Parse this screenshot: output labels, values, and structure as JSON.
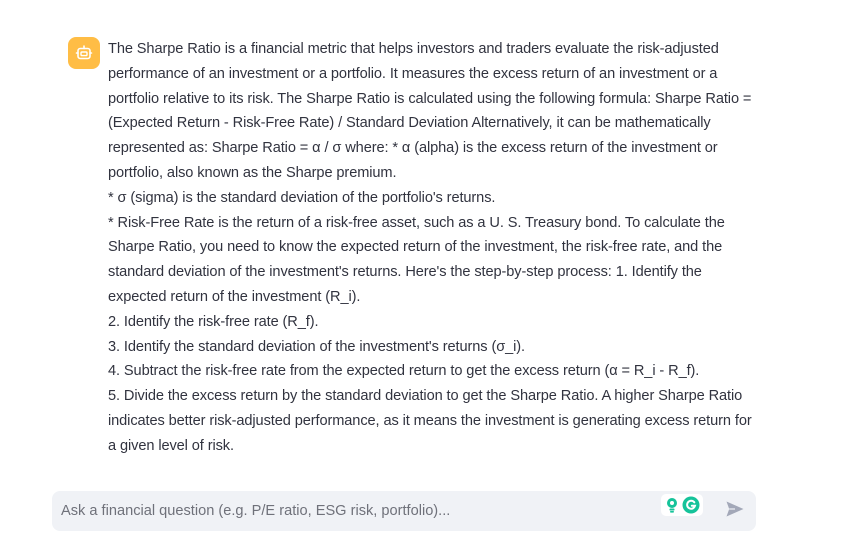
{
  "chat": {
    "assistant_message": {
      "paragraphs": [
        "The Sharpe Ratio is a financial metric that helps investors and traders evaluate the risk-adjusted performance of an investment or a portfolio. It measures the excess return of an investment or a portfolio relative to its risk. The Sharpe Ratio is calculated using the following formula: Sharpe Ratio = (Expected Return - Risk-Free Rate) / Standard Deviation Alternatively, it can be mathematically represented as: Sharpe Ratio = α / σ where: * α (alpha) is the excess return of the investment or portfolio, also known as the Sharpe premium.",
        "* σ (sigma) is the standard deviation of the portfolio's returns.",
        "* Risk-Free Rate is the return of a risk-free asset, such as a U. S. Treasury bond. To calculate the Sharpe Ratio, you need to know the expected return of the investment, the risk-free rate, and the standard deviation of the investment's returns. Here's the step-by-step process: 1. Identify the expected return of the investment (R_i).",
        "2. Identify the risk-free rate (R_f).",
        "3. Identify the standard deviation of the investment's returns (σ_i).",
        "4. Subtract the risk-free rate from the expected return to get the excess return (α = R_i - R_f).",
        "5. Divide the excess return by the standard deviation to get the Sharpe Ratio. A higher Sharpe Ratio indicates better risk-adjusted performance, as it means the investment is generating excess return for a given level of risk."
      ],
      "avatar_icon": "bot-icon",
      "avatar_color": "#ffbd45"
    },
    "input": {
      "placeholder": "Ask a financial question (e.g. P/E ratio, ESG risk, portfolio)...",
      "value": ""
    },
    "send_icon": "send-icon",
    "extension_icons": [
      "bulb-icon",
      "grammarly-icon"
    ],
    "colors": {
      "text": "#31333f",
      "input_bg": "#f0f2f6",
      "send": "#a3a8b8",
      "grammarly": "#15c39a"
    }
  }
}
